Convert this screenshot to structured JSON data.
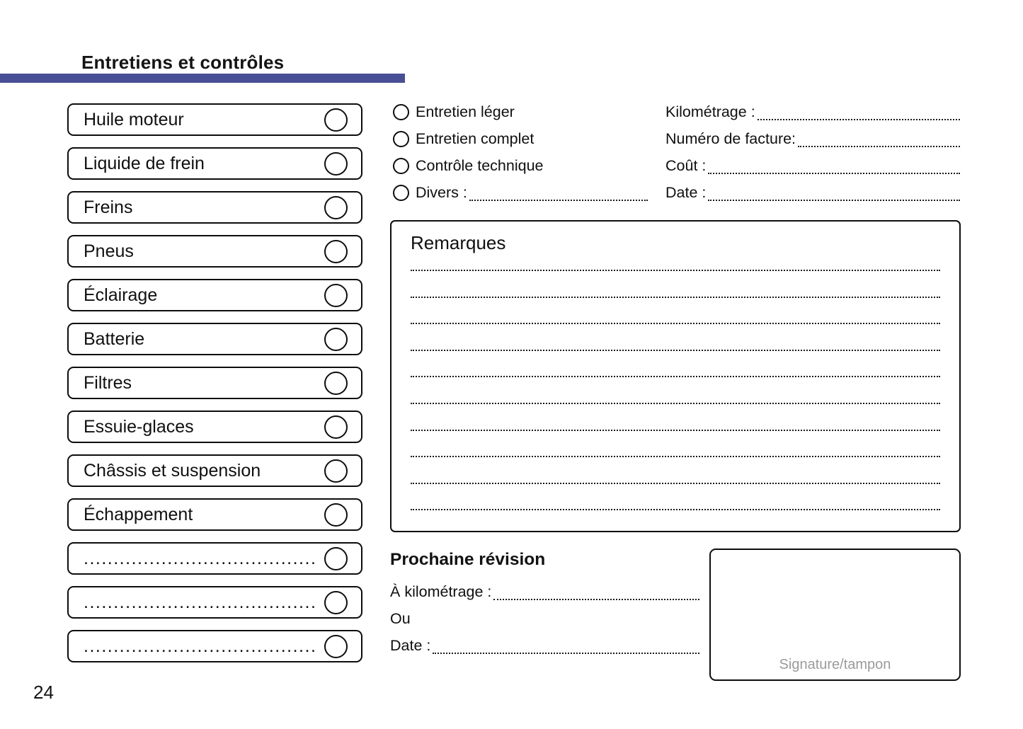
{
  "header": {
    "title": "Entretiens et contrôles"
  },
  "colors": {
    "accent": "#494f95",
    "signature_label": "#9b9b9b"
  },
  "checklist": {
    "items": [
      {
        "label": "Huile moteur"
      },
      {
        "label": "Liquide de frein"
      },
      {
        "label": "Freins"
      },
      {
        "label": "Pneus"
      },
      {
        "label": "Éclairage"
      },
      {
        "label": "Batterie"
      },
      {
        "label": "Filtres"
      },
      {
        "label": "Essuie-glaces"
      },
      {
        "label": "Châssis et suspension"
      },
      {
        "label": "Échappement"
      },
      {
        "label": "............................................"
      },
      {
        "label": "............................................"
      },
      {
        "label": "............................................"
      }
    ]
  },
  "service_types": {
    "options": [
      {
        "label": "Entretien léger"
      },
      {
        "label": "Entretien complet"
      },
      {
        "label": "Contrôle technique"
      },
      {
        "label": "Divers :"
      }
    ]
  },
  "record_fields": [
    {
      "label": "Kilométrage :"
    },
    {
      "label": "Numéro de facture:"
    },
    {
      "label": "Coût :"
    },
    {
      "label": "Date :"
    }
  ],
  "remarks": {
    "title": "Remarques",
    "line_count": 10
  },
  "next_service": {
    "title": "Prochaine révision",
    "km_label": "À kilométrage :",
    "or_label": "Ou",
    "date_label": "Date :"
  },
  "signature": {
    "label": "Signature/tampon"
  },
  "footer": {
    "page_number": "24"
  }
}
